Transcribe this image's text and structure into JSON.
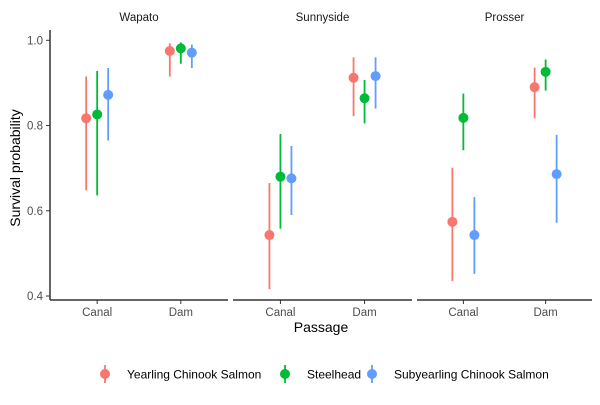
{
  "chart_data": {
    "type": "scatter",
    "subtype": "point-range (estimate with interval)",
    "xlabel": "Passage",
    "ylabel": "Survival probability",
    "ylim": [
      0.4,
      1.0
    ],
    "yticks": [
      0.4,
      0.6,
      0.8,
      1.0
    ],
    "ytick_labels": [
      "0.4",
      "0.6",
      "0.8",
      "1.0"
    ],
    "categories": [
      "Canal",
      "Dam"
    ],
    "grid": false,
    "legend_position": "bottom",
    "panels": [
      "Wapato",
      "Sunnyside",
      "Prosser"
    ],
    "series": [
      {
        "name": "Yearling Chinook Salmon",
        "color": "#F8766D",
        "points": {
          "Wapato": [
            {
              "x": "Canal",
              "y": 0.817,
              "lo": 0.648,
              "hi": 0.915
            },
            {
              "x": "Dam",
              "y": 0.975,
              "lo": 0.915,
              "hi": 0.993
            }
          ],
          "Sunnyside": [
            {
              "x": "Canal",
              "y": 0.543,
              "lo": 0.416,
              "hi": 0.665
            },
            {
              "x": "Dam",
              "y": 0.912,
              "lo": 0.822,
              "hi": 0.96
            }
          ],
          "Prosser": [
            {
              "x": "Canal",
              "y": 0.574,
              "lo": 0.435,
              "hi": 0.701
            },
            {
              "x": "Dam",
              "y": 0.89,
              "lo": 0.817,
              "hi": 0.936
            }
          ]
        }
      },
      {
        "name": "Steelhead",
        "color": "#00BA38",
        "points": {
          "Wapato": [
            {
              "x": "Canal",
              "y": 0.826,
              "lo": 0.636,
              "hi": 0.928
            },
            {
              "x": "Dam",
              "y": 0.981,
              "lo": 0.945,
              "hi": 0.995
            }
          ],
          "Sunnyside": [
            {
              "x": "Canal",
              "y": 0.68,
              "lo": 0.558,
              "hi": 0.78
            },
            {
              "x": "Dam",
              "y": 0.864,
              "lo": 0.805,
              "hi": 0.907
            }
          ],
          "Prosser": [
            {
              "x": "Canal",
              "y": 0.818,
              "lo": 0.742,
              "hi": 0.875
            },
            {
              "x": "Dam",
              "y": 0.926,
              "lo": 0.882,
              "hi": 0.955
            }
          ]
        }
      },
      {
        "name": "Subyearling Chinook Salmon",
        "color": "#619CFF",
        "points": {
          "Wapato": [
            {
              "x": "Canal",
              "y": 0.872,
              "lo": 0.765,
              "hi": 0.935
            },
            {
              "x": "Dam",
              "y": 0.971,
              "lo": 0.935,
              "hi": 0.99
            }
          ],
          "Sunnyside": [
            {
              "x": "Canal",
              "y": 0.676,
              "lo": 0.59,
              "hi": 0.752
            },
            {
              "x": "Dam",
              "y": 0.916,
              "lo": 0.84,
              "hi": 0.96
            }
          ],
          "Prosser": [
            {
              "x": "Canal",
              "y": 0.543,
              "lo": 0.452,
              "hi": 0.632
            },
            {
              "x": "Dam",
              "y": 0.686,
              "lo": 0.572,
              "hi": 0.778
            }
          ]
        }
      }
    ]
  }
}
